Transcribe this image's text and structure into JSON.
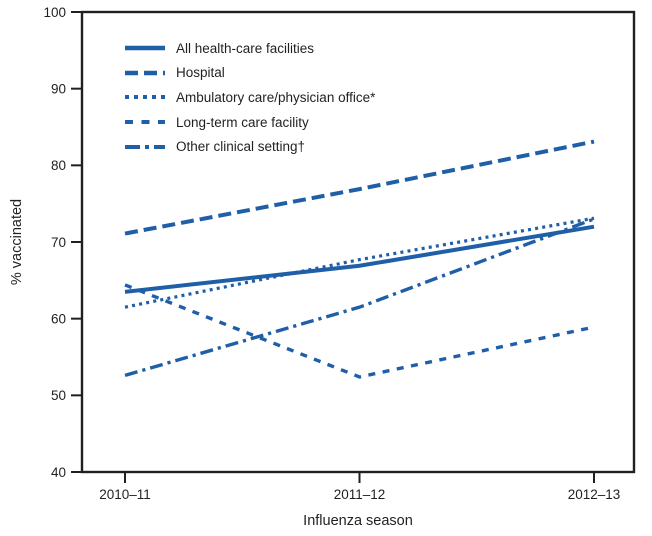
{
  "figure": {
    "background_color": "#ffffff",
    "axis_color": "#231f20",
    "text_color": "#231f20",
    "series_color": "#1f5fa8"
  },
  "chart_data": {
    "type": "line",
    "title": "",
    "xlabel": "Influenza season",
    "ylabel": "% vaccinated",
    "categories": [
      "2010–11",
      "2011–12",
      "2012–13"
    ],
    "ylim": [
      40,
      100
    ],
    "yticks": [
      40,
      50,
      60,
      70,
      80,
      90,
      100
    ],
    "grid": false,
    "legend_position": "upper-left-inside",
    "series": [
      {
        "name": "All health-care facilities",
        "line_style": "solid",
        "values": [
          63.5,
          66.9,
          72.0
        ]
      },
      {
        "name": "Hospital",
        "line_style": "long-dash",
        "values": [
          71.1,
          76.9,
          83.1
        ]
      },
      {
        "name": "Ambulatory care/physician office*",
        "line_style": "dotted",
        "values": [
          61.5,
          67.7,
          73.1
        ]
      },
      {
        "name": "Long-term care facility",
        "line_style": "medium-dash",
        "values": [
          64.4,
          52.4,
          58.9
        ]
      },
      {
        "name": "Other clinical setting†",
        "line_style": "dash-dot",
        "values": [
          52.6,
          61.5,
          73.0
        ]
      }
    ]
  }
}
